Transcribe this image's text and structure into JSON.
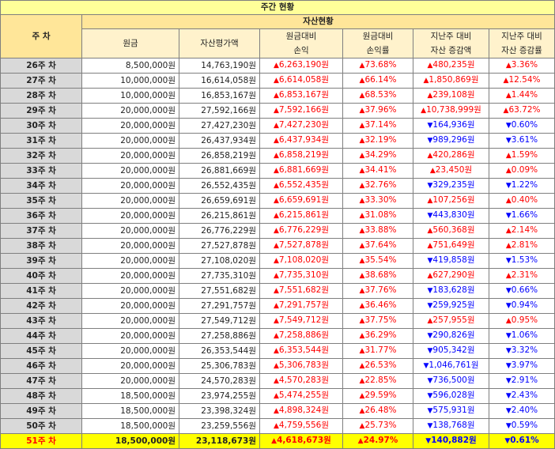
{
  "title": "주간 현황",
  "headers": {
    "week": "주 차",
    "group": "자산현황",
    "principal": "원금",
    "valuation": "자산평가액",
    "pnl_line1": "원금대비",
    "pnl_line2": "손익",
    "pnl_rate_line1": "원금대비",
    "pnl_rate_line2": "손익률",
    "chg_line1": "지난주 대비",
    "chg_line2": "자산 증감액",
    "chg_rate_line1": "지난주 대비",
    "chg_rate_line2": "자산 증감률"
  },
  "colors": {
    "up": "#ff0000",
    "down": "#0000ff",
    "week_bg": "#d9d9d9",
    "header_bg": "#ffe699",
    "highlight": "#ffff00"
  },
  "rows": [
    {
      "week": "26주 차",
      "principal": "8,500,000원",
      "valuation": "14,763,190원",
      "pnl": "6,263,190원",
      "pnl_dir": "up",
      "pnl_rate": "73.68%",
      "chg": "480,235원",
      "chg_dir": "up",
      "chg_rate": "3.36%"
    },
    {
      "week": "27주 차",
      "principal": "10,000,000원",
      "valuation": "16,614,058원",
      "pnl": "6,614,058원",
      "pnl_dir": "up",
      "pnl_rate": "66.14%",
      "chg": "1,850,869원",
      "chg_dir": "up",
      "chg_rate": "12.54%"
    },
    {
      "week": "28주 차",
      "principal": "10,000,000원",
      "valuation": "16,853,167원",
      "pnl": "6,853,167원",
      "pnl_dir": "up",
      "pnl_rate": "68.53%",
      "chg": "239,108원",
      "chg_dir": "up",
      "chg_rate": "1.44%"
    },
    {
      "week": "29주 차",
      "principal": "20,000,000원",
      "valuation": "27,592,166원",
      "pnl": "7,592,166원",
      "pnl_dir": "up",
      "pnl_rate": "37.96%",
      "chg": "10,738,999원",
      "chg_dir": "up",
      "chg_rate": "63.72%"
    },
    {
      "week": "30주 차",
      "principal": "20,000,000원",
      "valuation": "27,427,230원",
      "pnl": "7,427,230원",
      "pnl_dir": "up",
      "pnl_rate": "37.14%",
      "chg": "164,936원",
      "chg_dir": "down",
      "chg_rate": "0.60%"
    },
    {
      "week": "31주 차",
      "principal": "20,000,000원",
      "valuation": "26,437,934원",
      "pnl": "6,437,934원",
      "pnl_dir": "up",
      "pnl_rate": "32.19%",
      "chg": "989,296원",
      "chg_dir": "down",
      "chg_rate": "3.61%"
    },
    {
      "week": "32주 차",
      "principal": "20,000,000원",
      "valuation": "26,858,219원",
      "pnl": "6,858,219원",
      "pnl_dir": "up",
      "pnl_rate": "34.29%",
      "chg": "420,286원",
      "chg_dir": "up",
      "chg_rate": "1.59%"
    },
    {
      "week": "33주 차",
      "principal": "20,000,000원",
      "valuation": "26,881,669원",
      "pnl": "6,881,669원",
      "pnl_dir": "up",
      "pnl_rate": "34.41%",
      "chg": "23,450원",
      "chg_dir": "up",
      "chg_rate": "0.09%"
    },
    {
      "week": "34주 차",
      "principal": "20,000,000원",
      "valuation": "26,552,435원",
      "pnl": "6,552,435원",
      "pnl_dir": "up",
      "pnl_rate": "32.76%",
      "chg": "329,235원",
      "chg_dir": "down",
      "chg_rate": "1.22%"
    },
    {
      "week": "35주 차",
      "principal": "20,000,000원",
      "valuation": "26,659,691원",
      "pnl": "6,659,691원",
      "pnl_dir": "up",
      "pnl_rate": "33.30%",
      "chg": "107,256원",
      "chg_dir": "up",
      "chg_rate": "0.40%"
    },
    {
      "week": "36주 차",
      "principal": "20,000,000원",
      "valuation": "26,215,861원",
      "pnl": "6,215,861원",
      "pnl_dir": "up",
      "pnl_rate": "31.08%",
      "chg": "443,830원",
      "chg_dir": "down",
      "chg_rate": "1.66%"
    },
    {
      "week": "37주 차",
      "principal": "20,000,000원",
      "valuation": "26,776,229원",
      "pnl": "6,776,229원",
      "pnl_dir": "up",
      "pnl_rate": "33.88%",
      "chg": "560,368원",
      "chg_dir": "up",
      "chg_rate": "2.14%"
    },
    {
      "week": "38주 차",
      "principal": "20,000,000원",
      "valuation": "27,527,878원",
      "pnl": "7,527,878원",
      "pnl_dir": "up",
      "pnl_rate": "37.64%",
      "chg": "751,649원",
      "chg_dir": "up",
      "chg_rate": "2.81%"
    },
    {
      "week": "39주 차",
      "principal": "20,000,000원",
      "valuation": "27,108,020원",
      "pnl": "7,108,020원",
      "pnl_dir": "up",
      "pnl_rate": "35.54%",
      "chg": "419,858원",
      "chg_dir": "down",
      "chg_rate": "1.53%"
    },
    {
      "week": "40주 차",
      "principal": "20,000,000원",
      "valuation": "27,735,310원",
      "pnl": "7,735,310원",
      "pnl_dir": "up",
      "pnl_rate": "38.68%",
      "chg": "627,290원",
      "chg_dir": "up",
      "chg_rate": "2.31%"
    },
    {
      "week": "41주 차",
      "principal": "20,000,000원",
      "valuation": "27,551,682원",
      "pnl": "7,551,682원",
      "pnl_dir": "up",
      "pnl_rate": "37.76%",
      "chg": "183,628원",
      "chg_dir": "down",
      "chg_rate": "0.66%"
    },
    {
      "week": "42주 차",
      "principal": "20,000,000원",
      "valuation": "27,291,757원",
      "pnl": "7,291,757원",
      "pnl_dir": "up",
      "pnl_rate": "36.46%",
      "chg": "259,925원",
      "chg_dir": "down",
      "chg_rate": "0.94%"
    },
    {
      "week": "43주 차",
      "principal": "20,000,000원",
      "valuation": "27,549,712원",
      "pnl": "7,549,712원",
      "pnl_dir": "up",
      "pnl_rate": "37.75%",
      "chg": "257,955원",
      "chg_dir": "up",
      "chg_rate": "0.95%"
    },
    {
      "week": "44주 차",
      "principal": "20,000,000원",
      "valuation": "27,258,886원",
      "pnl": "7,258,886원",
      "pnl_dir": "up",
      "pnl_rate": "36.29%",
      "chg": "290,826원",
      "chg_dir": "down",
      "chg_rate": "1.06%"
    },
    {
      "week": "45주 차",
      "principal": "20,000,000원",
      "valuation": "26,353,544원",
      "pnl": "6,353,544원",
      "pnl_dir": "up",
      "pnl_rate": "31.77%",
      "chg": "905,342원",
      "chg_dir": "down",
      "chg_rate": "3.32%"
    },
    {
      "week": "46주 차",
      "principal": "20,000,000원",
      "valuation": "25,306,783원",
      "pnl": "5,306,783원",
      "pnl_dir": "up",
      "pnl_rate": "26.53%",
      "chg": "1,046,761원",
      "chg_dir": "down",
      "chg_rate": "3.97%"
    },
    {
      "week": "47주 차",
      "principal": "20,000,000원",
      "valuation": "24,570,283원",
      "pnl": "4,570,283원",
      "pnl_dir": "up",
      "pnl_rate": "22.85%",
      "chg": "736,500원",
      "chg_dir": "down",
      "chg_rate": "2.91%"
    },
    {
      "week": "48주 차",
      "principal": "18,500,000원",
      "valuation": "23,974,255원",
      "pnl": "5,474,255원",
      "pnl_dir": "up",
      "pnl_rate": "29.59%",
      "chg": "596,028원",
      "chg_dir": "down",
      "chg_rate": "2.43%"
    },
    {
      "week": "49주 차",
      "principal": "18,500,000원",
      "valuation": "23,398,324원",
      "pnl": "4,898,324원",
      "pnl_dir": "up",
      "pnl_rate": "26.48%",
      "chg": "575,931원",
      "chg_dir": "down",
      "chg_rate": "2.40%"
    },
    {
      "week": "50주 차",
      "principal": "18,500,000원",
      "valuation": "23,259,556원",
      "pnl": "4,759,556원",
      "pnl_dir": "up",
      "pnl_rate": "25.73%",
      "chg": "138,768원",
      "chg_dir": "down",
      "chg_rate": "0.59%"
    },
    {
      "week": "51주 차",
      "principal": "18,500,000원",
      "valuation": "23,118,673원",
      "pnl": "4,618,673원",
      "pnl_dir": "up",
      "pnl_rate": "24.97%",
      "chg": "140,882원",
      "chg_dir": "down",
      "chg_rate": "0.61%",
      "highlight": true
    }
  ]
}
